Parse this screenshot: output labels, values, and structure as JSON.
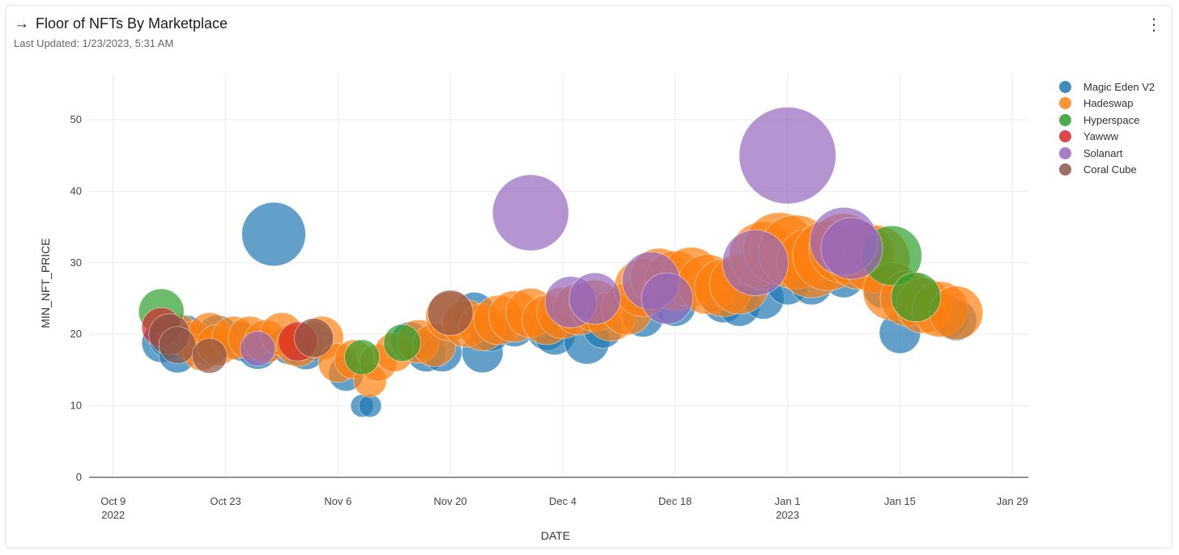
{
  "header": {
    "arrow": "→",
    "title": "Floor of NFTs By Marketplace",
    "last_updated": "Last Updated: 1/23/2023, 5:31 AM",
    "menu_icon": "⋮"
  },
  "colors": {
    "Magic Eden V2": "#1f77b4",
    "Hadeswap": "#ff7f0e",
    "Hyperspace": "#2ca02c",
    "Yawww": "#d62728",
    "Solanart": "#9467bd",
    "Coral Cube": "#8c564b"
  },
  "chart_data": {
    "type": "scatter",
    "title": "Floor of NFTs By Marketplace",
    "xlabel": "DATE",
    "ylabel": "MIN_NFT_PRICE",
    "x_range": [
      "2022-10-06",
      "2023-01-31"
    ],
    "ylim": [
      -3,
      56
    ],
    "yticks": [
      0,
      10,
      20,
      30,
      40,
      50
    ],
    "xticks": [
      {
        "date": "2022-10-09",
        "label": "Oct 9",
        "sublabel": "2022"
      },
      {
        "date": "2022-10-23",
        "label": "Oct 23",
        "sublabel": ""
      },
      {
        "date": "2022-11-06",
        "label": "Nov 6",
        "sublabel": ""
      },
      {
        "date": "2022-11-20",
        "label": "Nov 20",
        "sublabel": ""
      },
      {
        "date": "2022-12-04",
        "label": "Dec 4",
        "sublabel": ""
      },
      {
        "date": "2022-12-18",
        "label": "Dec 18",
        "sublabel": ""
      },
      {
        "date": "2023-01-01",
        "label": "Jan 1",
        "sublabel": "2023"
      },
      {
        "date": "2023-01-15",
        "label": "Jan 15",
        "sublabel": ""
      },
      {
        "date": "2023-01-29",
        "label": "Jan 29",
        "sublabel": ""
      }
    ],
    "legend": [
      "Magic Eden V2",
      "Hadeswap",
      "Hyperspace",
      "Yawww",
      "Solanart",
      "Coral Cube"
    ],
    "legend_position": "right",
    "series": [
      {
        "name": "Magic Eden V2",
        "points": [
          {
            "x": "2022-10-15",
            "y": 18.8,
            "size": 19
          },
          {
            "x": "2022-10-16",
            "y": 19.5,
            "size": 20
          },
          {
            "x": "2022-10-17",
            "y": 17.2,
            "size": 18
          },
          {
            "x": "2022-10-18",
            "y": 19.8,
            "size": 20
          },
          {
            "x": "2022-10-21",
            "y": 18.5,
            "size": 19
          },
          {
            "x": "2022-10-22",
            "y": 19.8,
            "size": 20
          },
          {
            "x": "2022-10-25",
            "y": 19.0,
            "size": 19
          },
          {
            "x": "2022-10-27",
            "y": 18.0,
            "size": 20
          },
          {
            "x": "2022-10-29",
            "y": 34.0,
            "size": 31
          },
          {
            "x": "2022-10-31",
            "y": 18.5,
            "size": 19
          },
          {
            "x": "2022-11-02",
            "y": 17.8,
            "size": 19
          },
          {
            "x": "2022-11-03",
            "y": 19.0,
            "size": 19
          },
          {
            "x": "2022-11-07",
            "y": 14.5,
            "size": 17
          },
          {
            "x": "2022-11-09",
            "y": 10.0,
            "size": 11
          },
          {
            "x": "2022-11-10",
            "y": 10.0,
            "size": 11
          },
          {
            "x": "2022-11-15",
            "y": 19.0,
            "size": 19
          },
          {
            "x": "2022-11-17",
            "y": 17.5,
            "size": 19
          },
          {
            "x": "2022-11-19",
            "y": 17.5,
            "size": 19
          },
          {
            "x": "2022-11-23",
            "y": 23.0,
            "size": 20
          },
          {
            "x": "2022-11-24",
            "y": 17.5,
            "size": 20
          },
          {
            "x": "2022-11-25",
            "y": 20.5,
            "size": 20
          },
          {
            "x": "2022-11-28",
            "y": 21.0,
            "size": 19
          },
          {
            "x": "2022-12-02",
            "y": 20.5,
            "size": 19
          },
          {
            "x": "2022-12-03",
            "y": 20.0,
            "size": 20
          },
          {
            "x": "2022-12-07",
            "y": 19.0,
            "size": 22
          },
          {
            "x": "2022-12-09",
            "y": 20.8,
            "size": 19
          },
          {
            "x": "2022-12-14",
            "y": 22.5,
            "size": 20
          },
          {
            "x": "2022-12-18",
            "y": 24.0,
            "size": 20
          },
          {
            "x": "2022-12-24",
            "y": 24.5,
            "size": 20
          },
          {
            "x": "2022-12-26",
            "y": 24.0,
            "size": 20
          },
          {
            "x": "2022-12-29",
            "y": 25.0,
            "size": 20
          },
          {
            "x": "2023-01-01",
            "y": 27.0,
            "size": 20
          },
          {
            "x": "2023-01-04",
            "y": 27.0,
            "size": 20
          },
          {
            "x": "2023-01-08",
            "y": 28.0,
            "size": 20
          },
          {
            "x": "2023-01-13",
            "y": 26.5,
            "size": 20
          },
          {
            "x": "2023-01-15",
            "y": 20.2,
            "size": 20
          },
          {
            "x": "2023-01-21",
            "y": 22.5,
            "size": 20
          },
          {
            "x": "2023-01-22",
            "y": 22.0,
            "size": 20
          }
        ]
      },
      {
        "name": "Hadeswap",
        "points": [
          {
            "x": "2022-10-17",
            "y": 20.0,
            "size": 20
          },
          {
            "x": "2022-10-19",
            "y": 19.0,
            "size": 20
          },
          {
            "x": "2022-10-20",
            "y": 17.5,
            "size": 18
          },
          {
            "x": "2022-10-21",
            "y": 20.0,
            "size": 21
          },
          {
            "x": "2022-10-22",
            "y": 18.5,
            "size": 20
          },
          {
            "x": "2022-10-24",
            "y": 19.5,
            "size": 21
          },
          {
            "x": "2022-10-26",
            "y": 19.5,
            "size": 21
          },
          {
            "x": "2022-10-28",
            "y": 19.0,
            "size": 21
          },
          {
            "x": "2022-10-30",
            "y": 20.0,
            "size": 21
          },
          {
            "x": "2022-11-01",
            "y": 18.5,
            "size": 21
          },
          {
            "x": "2022-11-04",
            "y": 19.5,
            "size": 21
          },
          {
            "x": "2022-11-06",
            "y": 16.0,
            "size": 19
          },
          {
            "x": "2022-11-08",
            "y": 16.5,
            "size": 19
          },
          {
            "x": "2022-11-10",
            "y": 13.5,
            "size": 16
          },
          {
            "x": "2022-11-11",
            "y": 16.0,
            "size": 18
          },
          {
            "x": "2022-11-13",
            "y": 17.5,
            "size": 19
          },
          {
            "x": "2022-11-16",
            "y": 19.0,
            "size": 21
          },
          {
            "x": "2022-11-18",
            "y": 18.5,
            "size": 21
          },
          {
            "x": "2022-11-20",
            "y": 22.5,
            "size": 24
          },
          {
            "x": "2022-11-22",
            "y": 21.5,
            "size": 23
          },
          {
            "x": "2022-11-24",
            "y": 21.0,
            "size": 23
          },
          {
            "x": "2022-11-26",
            "y": 22.0,
            "size": 24
          },
          {
            "x": "2022-11-28",
            "y": 22.5,
            "size": 25
          },
          {
            "x": "2022-11-30",
            "y": 23.0,
            "size": 24
          },
          {
            "x": "2022-12-02",
            "y": 22.0,
            "size": 24
          },
          {
            "x": "2022-12-04",
            "y": 23.0,
            "size": 25
          },
          {
            "x": "2022-12-06",
            "y": 23.5,
            "size": 25
          },
          {
            "x": "2022-12-08",
            "y": 24.0,
            "size": 25
          },
          {
            "x": "2022-12-10",
            "y": 22.5,
            "size": 24
          },
          {
            "x": "2022-12-12",
            "y": 23.5,
            "size": 25
          },
          {
            "x": "2022-12-14",
            "y": 26.5,
            "size": 28
          },
          {
            "x": "2022-12-16",
            "y": 28.0,
            "size": 28
          },
          {
            "x": "2022-12-18",
            "y": 27.5,
            "size": 29
          },
          {
            "x": "2022-12-20",
            "y": 28.0,
            "size": 29
          },
          {
            "x": "2022-12-22",
            "y": 27.0,
            "size": 29
          },
          {
            "x": "2022-12-24",
            "y": 26.5,
            "size": 28
          },
          {
            "x": "2022-12-26",
            "y": 27.0,
            "size": 29
          },
          {
            "x": "2022-12-29",
            "y": 31.0,
            "size": 33
          },
          {
            "x": "2022-12-31",
            "y": 32.0,
            "size": 35
          },
          {
            "x": "2023-01-02",
            "y": 31.5,
            "size": 36
          },
          {
            "x": "2023-01-04",
            "y": 30.0,
            "size": 34
          },
          {
            "x": "2023-01-06",
            "y": 31.0,
            "size": 34
          },
          {
            "x": "2023-01-08",
            "y": 32.0,
            "size": 34
          },
          {
            "x": "2023-01-10",
            "y": 31.0,
            "size": 33
          },
          {
            "x": "2023-01-12",
            "y": 30.5,
            "size": 33
          },
          {
            "x": "2023-01-14",
            "y": 26.0,
            "size": 28
          },
          {
            "x": "2023-01-16",
            "y": 25.0,
            "size": 27
          },
          {
            "x": "2023-01-18",
            "y": 24.0,
            "size": 27
          },
          {
            "x": "2023-01-20",
            "y": 23.5,
            "size": 27
          },
          {
            "x": "2023-01-22",
            "y": 23.0,
            "size": 26
          }
        ]
      },
      {
        "name": "Hyperspace",
        "points": [
          {
            "x": "2022-10-15",
            "y": 23.2,
            "size": 22
          },
          {
            "x": "2022-11-09",
            "y": 16.8,
            "size": 17
          },
          {
            "x": "2022-11-14",
            "y": 18.8,
            "size": 18
          },
          {
            "x": "2023-01-14",
            "y": 31.0,
            "size": 29
          },
          {
            "x": "2023-01-17",
            "y": 25.2,
            "size": 24
          }
        ]
      },
      {
        "name": "Yawww",
        "points": [
          {
            "x": "2022-10-15",
            "y": 21.0,
            "size": 19
          },
          {
            "x": "2022-11-01",
            "y": 19.0,
            "size": 19
          }
        ]
      },
      {
        "name": "Solanart",
        "points": [
          {
            "x": "2022-10-27",
            "y": 18.0,
            "size": 17
          },
          {
            "x": "2022-11-30",
            "y": 37.0,
            "size": 37
          },
          {
            "x": "2022-12-05",
            "y": 24.5,
            "size": 25
          },
          {
            "x": "2022-12-08",
            "y": 25.0,
            "size": 25
          },
          {
            "x": "2022-12-15",
            "y": 27.5,
            "size": 28
          },
          {
            "x": "2022-12-17",
            "y": 25.0,
            "size": 25
          },
          {
            "x": "2022-12-28",
            "y": 30.0,
            "size": 32
          },
          {
            "x": "2023-01-01",
            "y": 45.0,
            "size": 47
          },
          {
            "x": "2023-01-08",
            "y": 33.0,
            "size": 33
          },
          {
            "x": "2023-01-09",
            "y": 32.0,
            "size": 30
          }
        ]
      },
      {
        "name": "Coral Cube",
        "points": [
          {
            "x": "2022-10-16",
            "y": 20.0,
            "size": 20
          },
          {
            "x": "2022-10-17",
            "y": 18.5,
            "size": 18
          },
          {
            "x": "2022-10-21",
            "y": 17.0,
            "size": 17
          },
          {
            "x": "2022-11-03",
            "y": 19.5,
            "size": 19
          },
          {
            "x": "2022-11-20",
            "y": 23.0,
            "size": 22
          }
        ]
      }
    ]
  }
}
